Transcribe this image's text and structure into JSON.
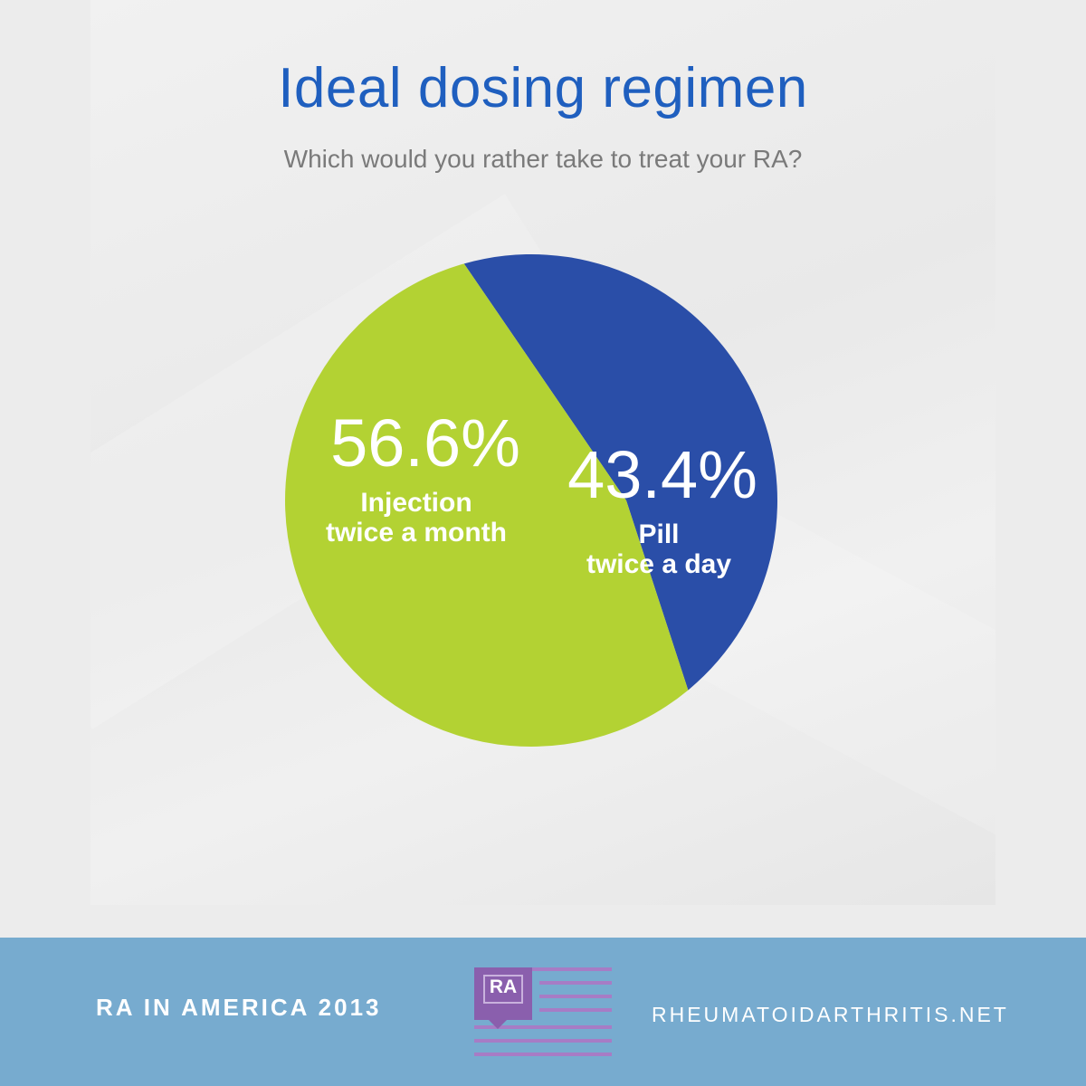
{
  "header": {
    "title": "Ideal dosing regimen",
    "subtitle": "Which would you rather take to treat your RA?"
  },
  "chart_data": {
    "type": "pie",
    "title": "Ideal dosing regimen",
    "subtitle": "Which would you rather take to treat your RA?",
    "slices": [
      {
        "label_line1": "Injection",
        "label_line2": "twice a month",
        "value": 56.6,
        "value_text": "56.6%",
        "color": "#b3d233"
      },
      {
        "label_line1": "Pill",
        "label_line2": "twice a day",
        "value": 43.4,
        "value_text": "43.4%",
        "color": "#2a4ea8"
      }
    ]
  },
  "footer": {
    "left_text": "RA IN AMERICA 2013",
    "logo_text": "RA",
    "right_text": "RHEUMATOIDARTHRITIS.NET"
  },
  "colors": {
    "title": "#1f5fbf",
    "footer_bg": "#77abcf",
    "logo_purple": "#8a5fad",
    "logo_stripe": "#a77cc5"
  }
}
